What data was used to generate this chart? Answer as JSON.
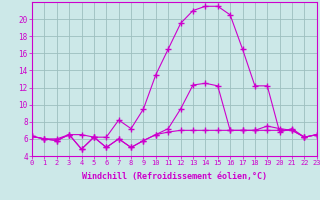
{
  "xlabel": "Windchill (Refroidissement éolien,°C)",
  "hours": [
    0,
    1,
    2,
    3,
    4,
    5,
    6,
    7,
    8,
    9,
    10,
    11,
    12,
    13,
    14,
    15,
    16,
    17,
    18,
    19,
    20,
    21,
    22,
    23
  ],
  "temp": [
    6.3,
    6.0,
    6.0,
    6.5,
    6.5,
    6.2,
    6.2,
    8.2,
    7.2,
    9.5,
    13.5,
    16.5,
    19.5,
    21.0,
    21.5,
    21.5,
    20.5,
    16.5,
    12.2,
    12.2,
    6.8,
    7.2,
    6.2,
    6.5
  ],
  "windchill": [
    6.3,
    6.0,
    5.8,
    6.5,
    4.8,
    6.2,
    5.0,
    6.0,
    5.0,
    5.8,
    6.5,
    7.2,
    9.5,
    12.3,
    12.5,
    12.2,
    7.0,
    7.0,
    7.0,
    7.5,
    7.2,
    7.0,
    6.2,
    6.5
  ],
  "apparent": [
    6.3,
    6.0,
    5.8,
    6.5,
    4.8,
    6.2,
    5.0,
    6.0,
    5.0,
    5.8,
    6.5,
    6.8,
    7.0,
    7.0,
    7.0,
    7.0,
    7.0,
    7.0,
    7.0,
    7.0,
    7.0,
    7.0,
    6.2,
    6.5
  ],
  "line_color": "#cc00cc",
  "bg_color": "#cce8e8",
  "grid_color": "#9dbfbf",
  "ylim": [
    4,
    22
  ],
  "yticks": [
    4,
    6,
    8,
    10,
    12,
    14,
    16,
    18,
    20
  ],
  "xlim": [
    0,
    23
  ]
}
